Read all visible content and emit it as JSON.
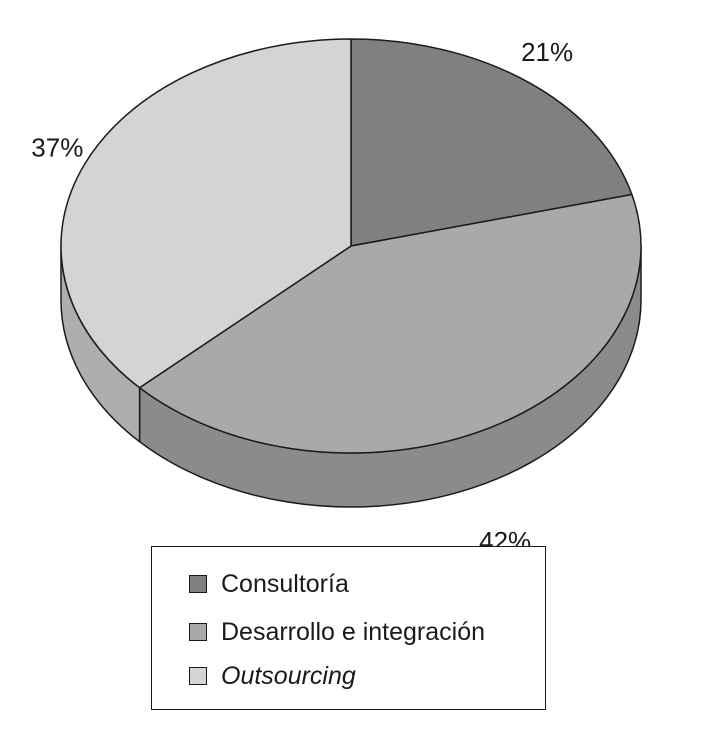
{
  "chart_data": {
    "type": "pie",
    "title": "",
    "slices": [
      {
        "label": "Consultoría",
        "value": 21,
        "display": "21%",
        "color": "#808083"
      },
      {
        "label": "Desarrollo e integración",
        "value": 42,
        "display": "42%",
        "color": "#a9a9ab"
      },
      {
        "label": "Outsourcing",
        "value": 37,
        "display": "37%",
        "color": "#d4d4d5",
        "italic": true
      }
    ],
    "style": "3d",
    "legend_position": "bottom"
  },
  "colors": {
    "outline": "#1a1a1a",
    "background": "#ffffff"
  }
}
